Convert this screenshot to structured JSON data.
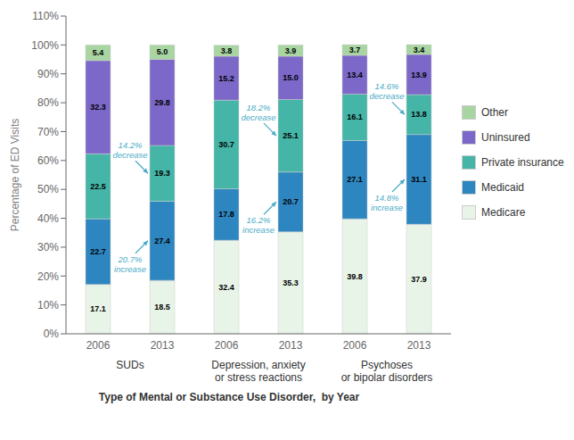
{
  "chart_data": [
    {
      "type": "bar",
      "stacked": true,
      "data_labels": true,
      "grid": false,
      "xlabel": "SUDs",
      "ylabel": "Percentage of ED Visits",
      "categories": [
        "2006",
        "2013"
      ],
      "series": [
        {
          "name": "Medicare",
          "color": "#e8f4e8",
          "values": [
            17.1,
            18.5
          ]
        },
        {
          "name": "Medicaid",
          "color": "#2E86C1",
          "values": [
            22.7,
            27.4
          ]
        },
        {
          "name": "Private insurance",
          "color": "#45B5A8",
          "values": [
            22.5,
            19.3
          ]
        },
        {
          "name": "Uninsured",
          "color": "#7B68C8",
          "values": [
            32.3,
            29.8
          ]
        },
        {
          "name": "Other",
          "color": "#A8D5A2",
          "values": [
            5.4,
            5.0
          ],
          "value_labels": [
            "5.4",
            "5.0"
          ]
        }
      ],
      "ylim": [
        0,
        110
      ],
      "yticks": [
        {
          "value": 0,
          "label": "0%"
        },
        {
          "value": 10,
          "label": "10%"
        },
        {
          "value": 20,
          "label": "20%"
        },
        {
          "value": 30,
          "label": "30%"
        },
        {
          "value": 40,
          "label": "40%"
        },
        {
          "value": 50,
          "label": "50%"
        },
        {
          "value": 60,
          "label": "60%"
        },
        {
          "value": 70,
          "label": "70%"
        },
        {
          "value": 80,
          "label": "80%"
        },
        {
          "value": 90,
          "label": "90%"
        },
        {
          "value": 100,
          "label": "100%"
        },
        {
          "value": 110,
          "label": "110%"
        }
      ],
      "annotations": [
        {
          "text": "14.2%\ndecrease",
          "category": "2013",
          "series": "Private insurance",
          "color": "#4BACC6"
        },
        {
          "text": "20.7%\nincrease",
          "category": "2013",
          "series": "Medicaid",
          "color": "#4BACC6"
        }
      ]
    },
    {
      "type": "bar",
      "stacked": true,
      "data_labels": true,
      "grid": false,
      "xlabel": "Depression, anxiety\nor stress reactions",
      "categories": [
        "2006",
        "2013"
      ],
      "series": [
        {
          "name": "Medicare",
          "color": "#e8f4e8",
          "values": [
            32.4,
            35.3
          ]
        },
        {
          "name": "Medicaid",
          "color": "#2E86C1",
          "values": [
            17.8,
            20.7
          ]
        },
        {
          "name": "Private insurance",
          "color": "#45B5A8",
          "values": [
            30.7,
            25.1
          ]
        },
        {
          "name": "Uninsured",
          "color": "#7B68C8",
          "values": [
            15.2,
            15.0
          ],
          "value_labels": [
            "15.2",
            "15.0"
          ]
        },
        {
          "name": "Other",
          "color": "#A8D5A2",
          "values": [
            3.8,
            3.9
          ]
        }
      ],
      "ylim": [
        0,
        110
      ],
      "yticks": [
        {
          "value": 0,
          "label": "0%"
        },
        {
          "value": 10,
          "label": "10%"
        },
        {
          "value": 20,
          "label": "20%"
        },
        {
          "value": 30,
          "label": "30%"
        },
        {
          "value": 40,
          "label": "40%"
        },
        {
          "value": 50,
          "label": "50%"
        },
        {
          "value": 60,
          "label": "60%"
        },
        {
          "value": 70,
          "label": "70%"
        },
        {
          "value": 80,
          "label": "80%"
        },
        {
          "value": 90,
          "label": "90%"
        },
        {
          "value": 100,
          "label": "100%"
        },
        {
          "value": 110,
          "label": "110%"
        }
      ],
      "annotations": [
        {
          "text": "18.2%\ndecrease",
          "category": "2013",
          "series": "Private insurance",
          "color": "#4BACC6"
        },
        {
          "text": "16.2%\nincrease",
          "category": "2013",
          "series": "Medicaid",
          "color": "#4BACC6"
        }
      ]
    },
    {
      "type": "bar",
      "stacked": true,
      "data_labels": true,
      "grid": false,
      "xlabel": "Psychoses\nor bipolar disorders",
      "categories": [
        "2006",
        "2013"
      ],
      "series": [
        {
          "name": "Medicare",
          "color": "#e8f4e8",
          "values": [
            39.8,
            37.9
          ]
        },
        {
          "name": "Medicaid",
          "color": "#2E86C1",
          "values": [
            27.1,
            31.1
          ]
        },
        {
          "name": "Private insurance",
          "color": "#45B5A8",
          "values": [
            16.1,
            13.8
          ]
        },
        {
          "name": "Uninsured",
          "color": "#7B68C8",
          "values": [
            13.4,
            13.9
          ]
        },
        {
          "name": "Other",
          "color": "#A8D5A2",
          "values": [
            3.7,
            3.4
          ]
        }
      ],
      "ylim": [
        0,
        110
      ],
      "yticks": [
        {
          "value": 0,
          "label": "0%"
        },
        {
          "value": 10,
          "label": "10%"
        },
        {
          "value": 20,
          "label": "20%"
        },
        {
          "value": 30,
          "label": "30%"
        },
        {
          "value": 40,
          "label": "40%"
        },
        {
          "value": 50,
          "label": "50%"
        },
        {
          "value": 60,
          "label": "60%"
        },
        {
          "value": 70,
          "label": "70%"
        },
        {
          "value": 80,
          "label": "80%"
        },
        {
          "value": 90,
          "label": "90%"
        },
        {
          "value": 100,
          "label": "100%"
        },
        {
          "value": 110,
          "label": "110%"
        }
      ],
      "annotations": [
        {
          "text": "14.6%\ndecrease",
          "category": "2013",
          "series": "Private insurance",
          "color": "#4BACC6"
        },
        {
          "text": "14.8%\nincrease",
          "category": "2013",
          "series": "Medicaid",
          "color": "#4BACC6"
        }
      ]
    }
  ],
  "xlabel": "Type of Mental or Substance Use Disorder,  by Year",
  "legend": "right"
}
